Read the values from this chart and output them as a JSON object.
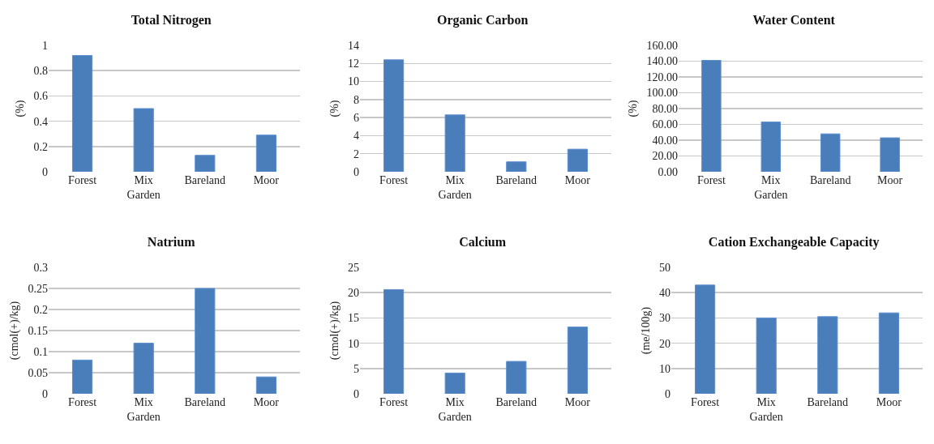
{
  "chart_data": [
    {
      "type": "bar",
      "title": "Total Nitrogen",
      "ylabel": "(%)",
      "categories": [
        "Forest",
        "Mix Garden",
        "Bareland",
        "Moor"
      ],
      "values": [
        0.92,
        0.5,
        0.13,
        0.29
      ],
      "color": "#4a7ebb",
      "ylim": [
        0,
        1
      ],
      "yticks": [
        0,
        0.2,
        0.4,
        0.6,
        0.8,
        1
      ],
      "grid": "y"
    },
    {
      "type": "bar",
      "title": "Organic Carbon",
      "ylabel": "(%)",
      "categories": [
        "Forest",
        "Mix Garden",
        "Bareland",
        "Moor"
      ],
      "values": [
        12.4,
        6.3,
        1.1,
        2.5
      ],
      "color": "#4a7ebb",
      "ylim": [
        0,
        14
      ],
      "yticks": [
        0,
        2,
        4,
        6,
        8,
        10,
        12,
        14
      ],
      "grid": "y"
    },
    {
      "type": "bar",
      "title": "Water Content",
      "ylabel": "(%)",
      "categories": [
        "Forest",
        "Mix Garden",
        "Bareland",
        "Moor"
      ],
      "values": [
        141,
        63,
        48,
        43
      ],
      "color": "#4a7ebb",
      "ylim": [
        0,
        160
      ],
      "yticks": [
        {
          "value": 0,
          "label": "0.00"
        },
        {
          "value": 20,
          "label": "20.00"
        },
        {
          "value": 40,
          "label": "40.00"
        },
        {
          "value": 60,
          "label": "60.00"
        },
        {
          "value": 80,
          "label": "80.00"
        },
        {
          "value": 100,
          "label": "100.00"
        },
        {
          "value": 120,
          "label": "120.00"
        },
        {
          "value": 140,
          "label": "140.00"
        },
        {
          "value": 160,
          "label": "160.00"
        }
      ],
      "grid": "y"
    },
    {
      "type": "bar",
      "title": "Natrium",
      "ylabel": "(cmol(+)/kg)",
      "categories": [
        "Forest",
        "Mix Garden",
        "Bareland",
        "Moor"
      ],
      "values": [
        0.08,
        0.12,
        0.25,
        0.04
      ],
      "color": "#4a7ebb",
      "ylim": [
        0,
        0.3
      ],
      "yticks": [
        0,
        0.05,
        0.1,
        0.15,
        0.2,
        0.25,
        0.3
      ],
      "grid": "y"
    },
    {
      "type": "bar",
      "title": "Calcium",
      "ylabel": "(cmol(+)/kg)",
      "categories": [
        "Forest",
        "Mix Garden",
        "Bareland",
        "Moor"
      ],
      "values": [
        20.6,
        4.1,
        6.4,
        13.2
      ],
      "color": "#4a7ebb",
      "ylim": [
        0,
        25
      ],
      "yticks": [
        0,
        5,
        10,
        15,
        20,
        25
      ],
      "grid": "y"
    },
    {
      "type": "bar",
      "title": "Cation Exchangeable Capacity",
      "ylabel": "(me/100g)",
      "categories": [
        "Forest",
        "Mix Garden",
        "Bareland",
        "Moor"
      ],
      "values": [
        43,
        30,
        30.5,
        32
      ],
      "color": "#4a7ebb",
      "ylim": [
        0,
        50
      ],
      "yticks": [
        0,
        10,
        20,
        30,
        40,
        50
      ],
      "grid": "y"
    }
  ]
}
